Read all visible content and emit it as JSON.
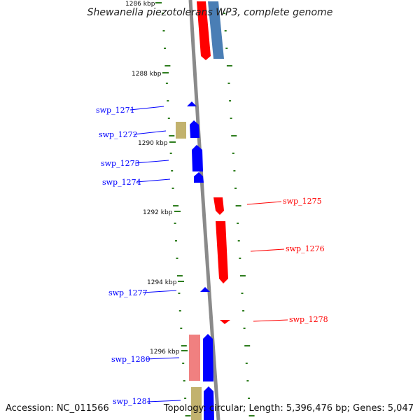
{
  "map": {
    "title": "Shewanella piezotolerans WP3, complete genome",
    "accession": "Accession: NC_011566",
    "topology": "Topology: circular; Length: 5,396,476 bp; Genes: 5,047"
  },
  "colors": {
    "backbone": "#8a8a8a",
    "tick": "#2e7d1e",
    "forward_gene": "#ff0000",
    "reverse_gene": "#0000ff",
    "rna": "#c2b26e",
    "pseudo_light_red": "#f08080",
    "steel_blue": "#4a7eb5"
  },
  "scale": {
    "labels": [
      {
        "text": "1286 kbp",
        "kbp": 1286
      },
      {
        "text": "1288 kbp",
        "kbp": 1288
      },
      {
        "text": "1290 kbp",
        "kbp": 1290
      },
      {
        "text": "1292 kbp",
        "kbp": 1292
      },
      {
        "text": "1294 kbp",
        "kbp": 1294
      },
      {
        "text": "1296 kbp",
        "kbp": 1296
      }
    ]
  },
  "genes": {
    "left": [
      {
        "label": "swp_1271",
        "strand": "reverse"
      },
      {
        "label": "swp_1272",
        "strand": "reverse"
      },
      {
        "label": "swp_1273",
        "strand": "reverse"
      },
      {
        "label": "swp_1274",
        "strand": "reverse"
      },
      {
        "label": "swp_1277",
        "strand": "reverse"
      },
      {
        "label": "swp_1280",
        "strand": "reverse"
      },
      {
        "label": "swp_1281",
        "strand": "reverse"
      }
    ],
    "right": [
      {
        "label": "swp_1275",
        "strand": "forward"
      },
      {
        "label": "swp_1276",
        "strand": "forward"
      },
      {
        "label": "swp_1278",
        "strand": "forward"
      }
    ]
  }
}
